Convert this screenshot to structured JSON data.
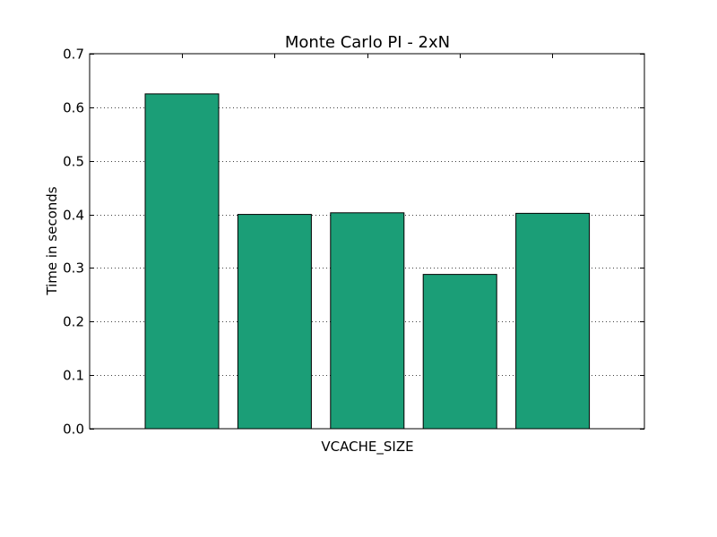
{
  "chart_data": {
    "type": "bar",
    "title": "Monte Carlo PI - 2xN",
    "xlabel": "VCACHE_SIZE",
    "ylabel": "Time in seconds",
    "categories": [
      "",
      "",
      "",
      "",
      ""
    ],
    "values": [
      0.625,
      0.4,
      0.403,
      0.288,
      0.402
    ],
    "ylim": [
      0,
      0.7
    ],
    "yticks": [
      "0.0",
      "0.1",
      "0.2",
      "0.3",
      "0.4",
      "0.5",
      "0.6",
      "0.7"
    ],
    "grid": "horizontal dotted",
    "bar_color": "#1b9e77",
    "legend": "none"
  }
}
